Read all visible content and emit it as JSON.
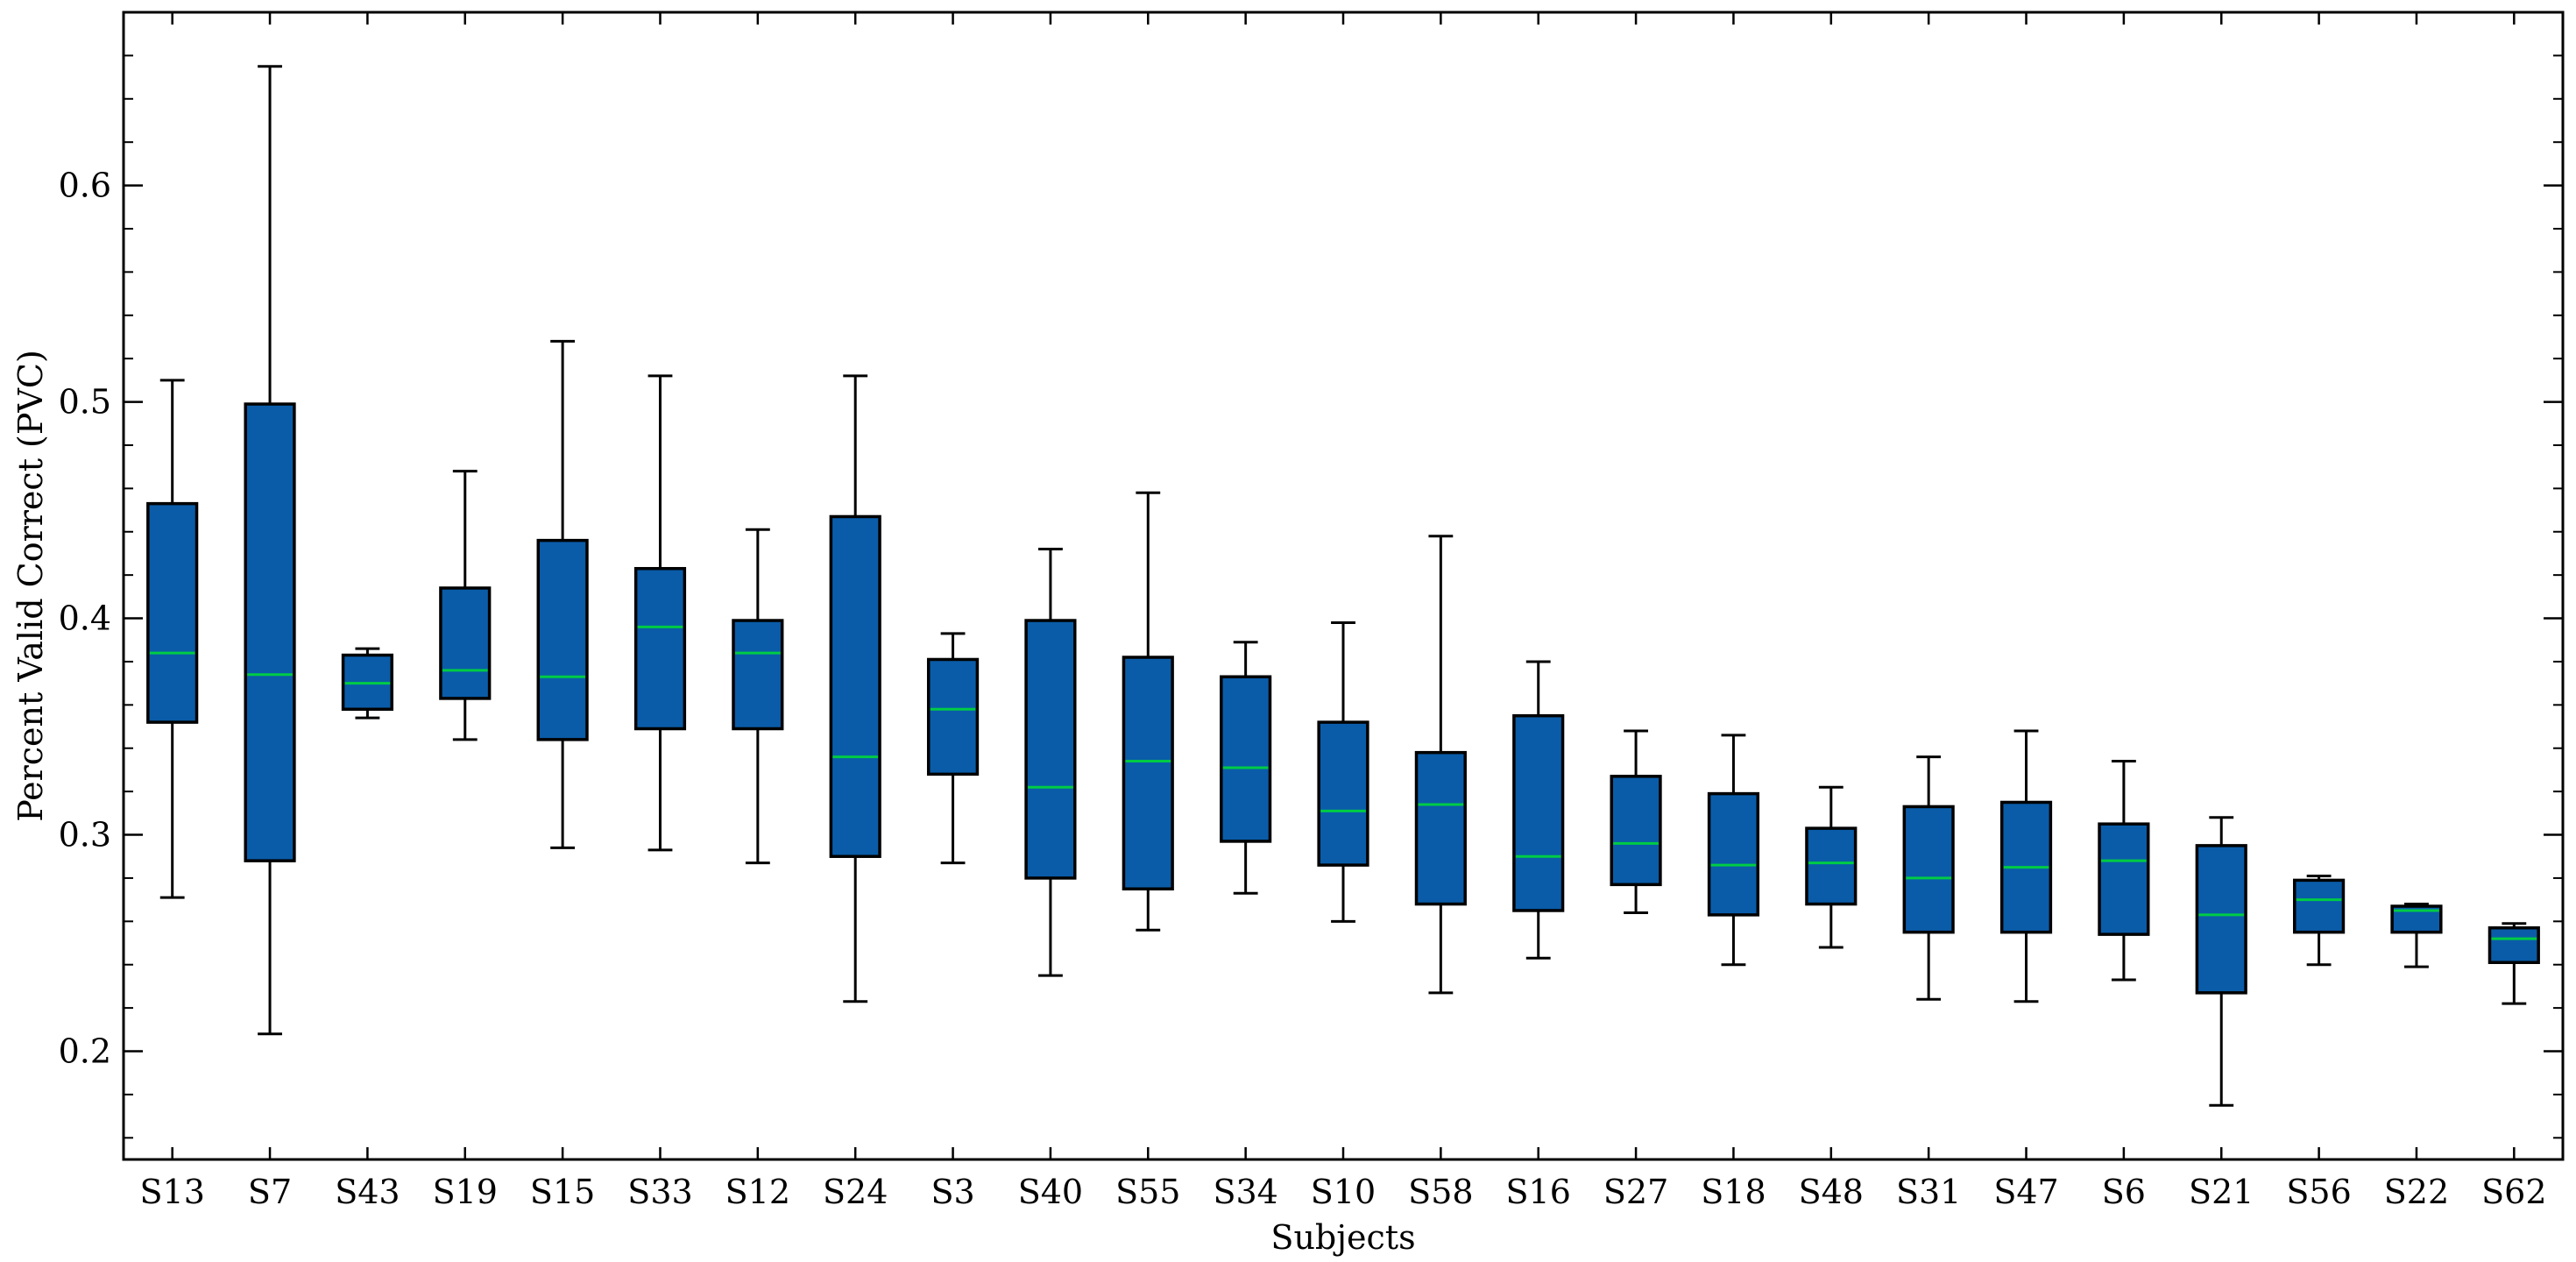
{
  "chart_data": {
    "type": "box",
    "xlabel": "Subjects",
    "ylabel": "Percent Valid Correct (PVC)",
    "ylim": [
      0.15,
      0.68
    ],
    "yticks": [
      0.2,
      0.3,
      0.4,
      0.5,
      0.6
    ],
    "ytick_labels": [
      "0.2",
      "0.3",
      "0.4",
      "0.5",
      "0.6"
    ],
    "grid": false,
    "box_color": "#0a5ca8",
    "median_color": "#00cc44",
    "categories": [
      "S13",
      "S7",
      "S43",
      "S19",
      "S15",
      "S33",
      "S12",
      "S24",
      "S3",
      "S40",
      "S55",
      "S34",
      "S10",
      "S58",
      "S16",
      "S27",
      "S18",
      "S48",
      "S31",
      "S47",
      "S6",
      "S21",
      "S56",
      "S22",
      "S62"
    ],
    "boxes": [
      {
        "whislo": 0.271,
        "q1": 0.352,
        "med": 0.384,
        "q3": 0.453,
        "whishi": 0.51
      },
      {
        "whislo": 0.208,
        "q1": 0.288,
        "med": 0.374,
        "q3": 0.499,
        "whishi": 0.655
      },
      {
        "whislo": 0.354,
        "q1": 0.358,
        "med": 0.37,
        "q3": 0.383,
        "whishi": 0.386
      },
      {
        "whislo": 0.344,
        "q1": 0.363,
        "med": 0.376,
        "q3": 0.414,
        "whishi": 0.468
      },
      {
        "whislo": 0.294,
        "q1": 0.344,
        "med": 0.373,
        "q3": 0.436,
        "whishi": 0.528
      },
      {
        "whislo": 0.293,
        "q1": 0.349,
        "med": 0.396,
        "q3": 0.423,
        "whishi": 0.512
      },
      {
        "whislo": 0.287,
        "q1": 0.349,
        "med": 0.384,
        "q3": 0.399,
        "whishi": 0.441
      },
      {
        "whislo": 0.223,
        "q1": 0.29,
        "med": 0.336,
        "q3": 0.447,
        "whishi": 0.512
      },
      {
        "whislo": 0.287,
        "q1": 0.328,
        "med": 0.358,
        "q3": 0.381,
        "whishi": 0.393
      },
      {
        "whislo": 0.235,
        "q1": 0.28,
        "med": 0.322,
        "q3": 0.399,
        "whishi": 0.432
      },
      {
        "whislo": 0.256,
        "q1": 0.275,
        "med": 0.334,
        "q3": 0.382,
        "whishi": 0.458
      },
      {
        "whislo": 0.273,
        "q1": 0.297,
        "med": 0.331,
        "q3": 0.373,
        "whishi": 0.389
      },
      {
        "whislo": 0.26,
        "q1": 0.286,
        "med": 0.311,
        "q3": 0.352,
        "whishi": 0.398
      },
      {
        "whislo": 0.227,
        "q1": 0.268,
        "med": 0.314,
        "q3": 0.338,
        "whishi": 0.438
      },
      {
        "whislo": 0.243,
        "q1": 0.265,
        "med": 0.29,
        "q3": 0.355,
        "whishi": 0.38
      },
      {
        "whislo": 0.264,
        "q1": 0.277,
        "med": 0.296,
        "q3": 0.327,
        "whishi": 0.348
      },
      {
        "whislo": 0.24,
        "q1": 0.263,
        "med": 0.286,
        "q3": 0.319,
        "whishi": 0.346
      },
      {
        "whislo": 0.248,
        "q1": 0.268,
        "med": 0.287,
        "q3": 0.303,
        "whishi": 0.322
      },
      {
        "whislo": 0.224,
        "q1": 0.255,
        "med": 0.28,
        "q3": 0.313,
        "whishi": 0.336
      },
      {
        "whislo": 0.223,
        "q1": 0.255,
        "med": 0.285,
        "q3": 0.315,
        "whishi": 0.348
      },
      {
        "whislo": 0.233,
        "q1": 0.254,
        "med": 0.288,
        "q3": 0.305,
        "whishi": 0.334
      },
      {
        "whislo": 0.175,
        "q1": 0.227,
        "med": 0.263,
        "q3": 0.295,
        "whishi": 0.308
      },
      {
        "whislo": 0.24,
        "q1": 0.255,
        "med": 0.27,
        "q3": 0.279,
        "whishi": 0.281
      },
      {
        "whislo": 0.239,
        "q1": 0.255,
        "med": 0.265,
        "q3": 0.267,
        "whishi": 0.268
      },
      {
        "whislo": 0.222,
        "q1": 0.241,
        "med": 0.252,
        "q3": 0.257,
        "whishi": 0.259
      }
    ]
  }
}
